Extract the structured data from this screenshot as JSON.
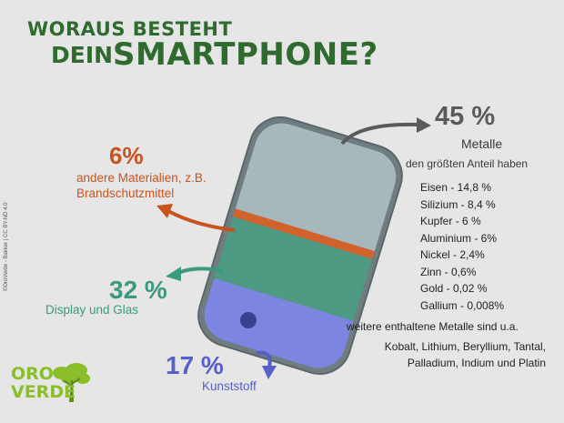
{
  "title": {
    "line1": "WORAUS BESTEHT",
    "line2a": "DEIN",
    "line2b": "SMARTPHONE?"
  },
  "segments": {
    "other": {
      "percent": "6%",
      "label_line1": "andere Materialien, z.B.",
      "label_line2": "Brandschutzmittel",
      "color": "#c9531f"
    },
    "display": {
      "percent": "32 %",
      "label": "Display und Glas",
      "color": "#3b9a7e"
    },
    "plastic": {
      "percent": "17 %",
      "label": "Kunststoff",
      "color": "#5560c9"
    },
    "metal": {
      "percent": "45 %",
      "label": "Metalle",
      "sublabel": "den größten Anteil haben",
      "color": "#5a5a5a"
    }
  },
  "metals": [
    "Eisen - 14,8 %",
    "Silizium - 8,4 %",
    "Kupfer - 6 %",
    "Aluminium - 6%",
    "Nickel - 2,4%",
    "Zinn - 0,6%",
    "Gold - 0,02 %",
    "Gallium - 0,008%"
  ],
  "further": {
    "heading": "weitere enthaltene Metalle sind u.a.",
    "line1": "Kobalt, Lithium, Beryllium, Tantal,",
    "line2": "Palladium, Indium und Platin"
  },
  "copyright": "©OroVerde - Bakker | CC BY-ND 4.0",
  "logo": {
    "line1": "ORO",
    "line2": "VERDE"
  }
}
